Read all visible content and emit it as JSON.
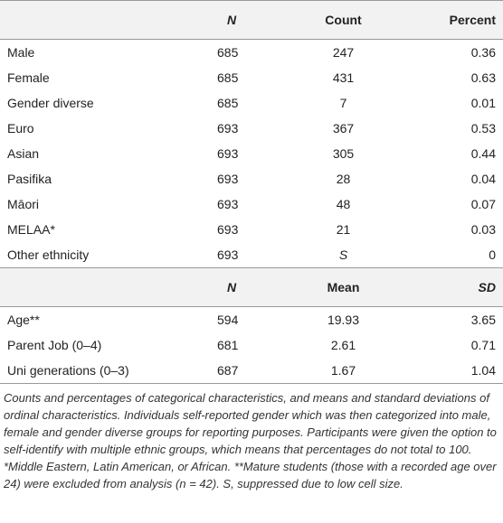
{
  "table1": {
    "header": [
      "",
      "N",
      "Count",
      "Percent"
    ],
    "rows": [
      [
        "Male",
        "685",
        "247",
        "0.36"
      ],
      [
        "Female",
        "685",
        "431",
        "0.63"
      ],
      [
        "Gender diverse",
        "685",
        "7",
        "0.01"
      ],
      [
        "Euro",
        "693",
        "367",
        "0.53"
      ],
      [
        "Asian",
        "693",
        "305",
        "0.44"
      ],
      [
        "Pasifika",
        "693",
        "28",
        "0.04"
      ],
      [
        "Māori",
        "693",
        "48",
        "0.07"
      ],
      [
        "MELAA*",
        "693",
        "21",
        "0.03"
      ],
      [
        "Other ethnicity",
        "693",
        "S",
        "0"
      ]
    ]
  },
  "table2": {
    "header": [
      "",
      "N",
      "Mean",
      "SD"
    ],
    "rows": [
      [
        "Age**",
        "594",
        "19.93",
        "3.65"
      ],
      [
        "Parent Job (0–4)",
        "681",
        "2.61",
        "0.71"
      ],
      [
        "Uni generations (0–3)",
        "687",
        "1.67",
        "1.04"
      ]
    ]
  },
  "note": "Counts and percentages of categorical characteristics, and means and standard deviations of ordinal characteristics. Individuals self-reported gender which was then categorized into male, female and gender diverse groups for reporting purposes. Participants were given the option to self-identify with multiple ethnic groups, which means that percentages do not total to 100. *Middle Eastern, Latin American, or African. **Mature students (those with a recorded age over 24) were excluded from analysis (n = 42). S, suppressed due to low cell size."
}
